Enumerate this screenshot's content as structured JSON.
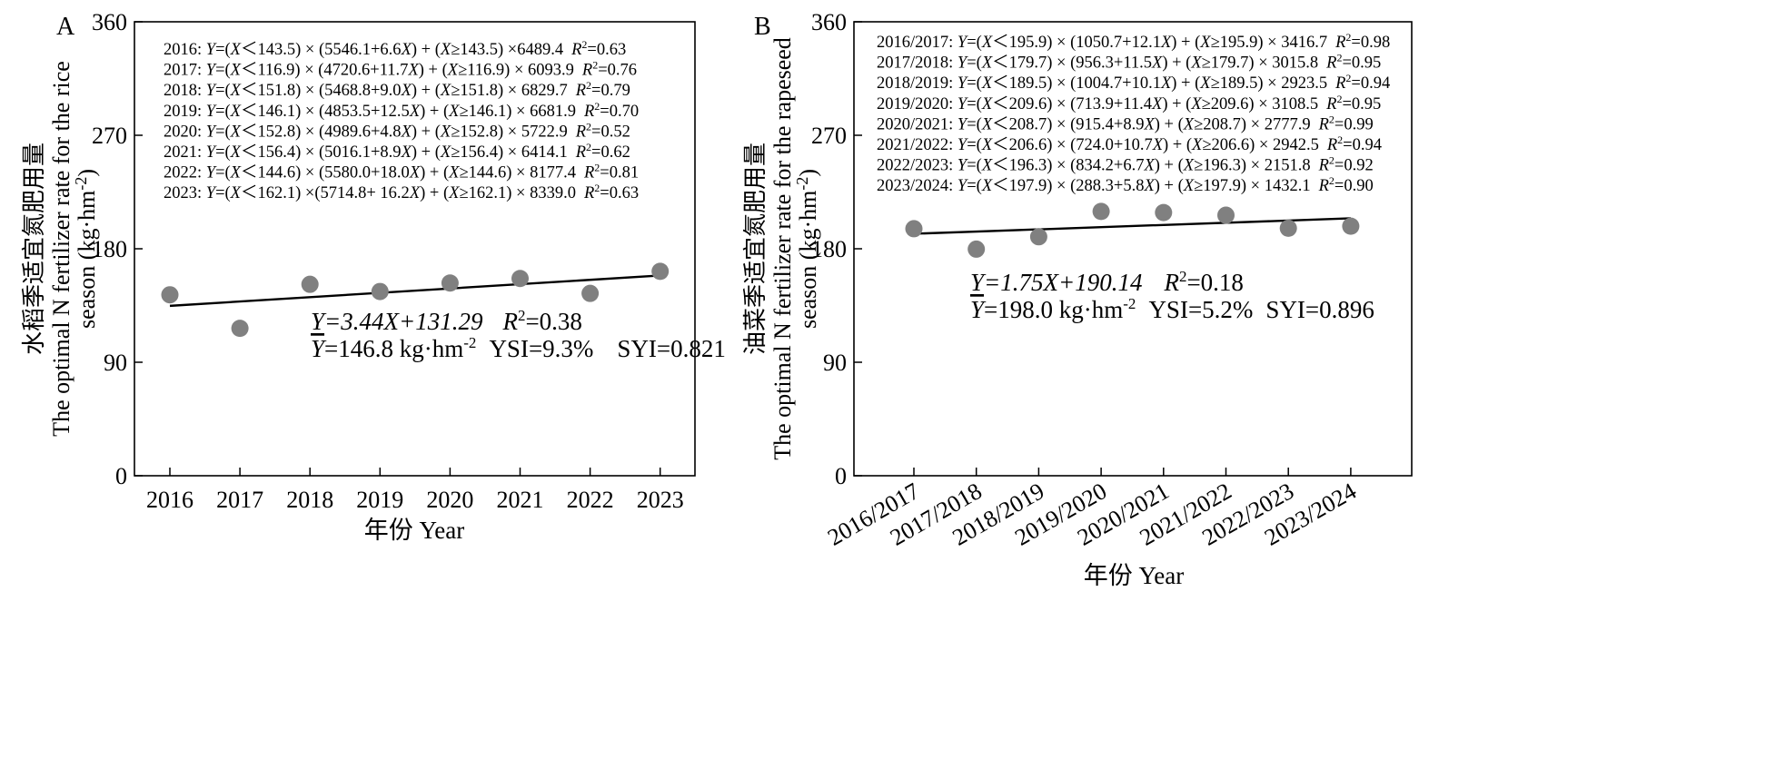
{
  "chart_data": [
    {
      "panel": "A",
      "type": "scatter",
      "x": [
        "2016",
        "2017",
        "2018",
        "2019",
        "2020",
        "2021",
        "2022",
        "2023"
      ],
      "y": [
        143.5,
        116.9,
        151.8,
        146.1,
        152.8,
        156.4,
        144.6,
        162.1
      ],
      "trend": {
        "slope": 3.44,
        "intercept": 131.29
      },
      "ylim": [
        0,
        360
      ],
      "yticks": [
        "0",
        "90",
        "180",
        "270",
        "360"
      ],
      "ylabel_cn": "水稻季适宜氮肥用量",
      "ylabel_en1": "The optimal N fertilizer rate for the rice",
      "ylabel_en2_prefix": "season (kg·hm",
      "ylabel_en2_exp": "-2",
      "ylabel_en2_suffix": ")",
      "xlabel": "年份 Year",
      "colors": {
        "points": "#808080",
        "line": "#000000"
      },
      "equations": [
        {
          "year": "2016:",
          "body": "Y=(X＜143.5) × (5546.1+6.6X) + (X≥143.5) ×6489.4",
          "r2": "=0.63"
        },
        {
          "year": "2017:",
          "body": "Y=(X＜116.9) × (4720.6+11.7X) + (X≥116.9) × 6093.9",
          "r2": "=0.76"
        },
        {
          "year": "2018:",
          "body": "Y=(X＜151.8) × (5468.8+9.0X) + (X≥151.8) × 6829.7",
          "r2": "=0.79"
        },
        {
          "year": "2019:",
          "body": "Y=(X＜146.1) × (4853.5+12.5X) + (X≥146.1) × 6681.9",
          "r2": "=0.70"
        },
        {
          "year": "2020:",
          "body": "Y=(X＜152.8) × (4989.6+4.8X) + (X≥152.8) × 5722.9",
          "r2": "=0.52"
        },
        {
          "year": "2021:",
          "body": "Y=(X＜156.4) × (5016.1+8.9X) + (X≥156.4) × 6414.1",
          "r2": "=0.62"
        },
        {
          "year": "2022:",
          "body": "Y=(X＜144.6) × (5580.0+18.0X) + (X≥144.6) × 8177.4",
          "r2": "=0.81"
        },
        {
          "year": "2023:",
          "body": "Y=(X＜162.1) ×(5714.8+ 16.2X) + (X≥162.1) × 8339.0",
          "r2": "=0.63"
        }
      ],
      "stats": {
        "regression": "Y=3.44X+131.29",
        "r2": "=0.38",
        "mean": "=146.8 kg·hm",
        "mean_exp": "-2",
        "ysi": "YSI=9.3%",
        "syi": "SYI=0.821"
      }
    },
    {
      "panel": "B",
      "type": "scatter",
      "x": [
        "2016/2017",
        "2017/2018",
        "2018/2019",
        "2019/2020",
        "2020/2021",
        "2021/2022",
        "2022/2023",
        "2023/2024"
      ],
      "y": [
        195.9,
        179.7,
        189.5,
        209.6,
        208.7,
        206.6,
        196.3,
        197.9
      ],
      "trend": {
        "slope": 1.75,
        "intercept": 190.14
      },
      "ylim": [
        0,
        360
      ],
      "yticks": [
        "0",
        "90",
        "180",
        "270",
        "360"
      ],
      "ylabel_cn": "油菜季适宜氮肥用量",
      "ylabel_en1": "The optimal N fertilizer rate for the rapeseed",
      "ylabel_en2_prefix": "season (kg·hm",
      "ylabel_en2_exp": "-2",
      "ylabel_en2_suffix": ")",
      "xlabel": "年份 Year",
      "colors": {
        "points": "#808080",
        "line": "#000000"
      },
      "equations": [
        {
          "year": "2016/2017:",
          "body": "Y=(X＜195.9) × (1050.7+12.1X) + (X≥195.9) × 3416.7",
          "r2": "=0.98"
        },
        {
          "year": "2017/2018:",
          "body": "Y=(X＜179.7) × (956.3+11.5X) + (X≥179.7) × 3015.8",
          "r2": "=0.95"
        },
        {
          "year": "2018/2019:",
          "body": "Y=(X＜189.5) × (1004.7+10.1X) + (X≥189.5) × 2923.5",
          "r2": "=0.94"
        },
        {
          "year": "2019/2020:",
          "body": "Y=(X＜209.6) × (713.9+11.4X) + (X≥209.6) × 3108.5",
          "r2": "=0.95"
        },
        {
          "year": "2020/2021:",
          "body": "Y=(X＜208.7) × (915.4+8.9X) + (X≥208.7) × 2777.9",
          "r2": "=0.99"
        },
        {
          "year": "2021/2022:",
          "body": "Y=(X＜206.6) × (724.0+10.7X) + (X≥206.6) × 2942.5",
          "r2": "=0.94"
        },
        {
          "year": "2022/2023:",
          "body": "Y=(X＜196.3) × (834.2+6.7X) + (X≥196.3) × 2151.8",
          "r2": "=0.92"
        },
        {
          "year": "2023/2024:",
          "body": "Y=(X＜197.9) × (288.3+5.8X) + (X≥197.9) × 1432.1",
          "r2": "=0.90"
        }
      ],
      "stats": {
        "regression": "Y=1.75X+190.14",
        "r2": "=0.18",
        "mean": "=198.0 kg·hm",
        "mean_exp": "-2",
        "ysi": "YSI=5.2%",
        "syi": "SYI=0.896"
      }
    }
  ]
}
